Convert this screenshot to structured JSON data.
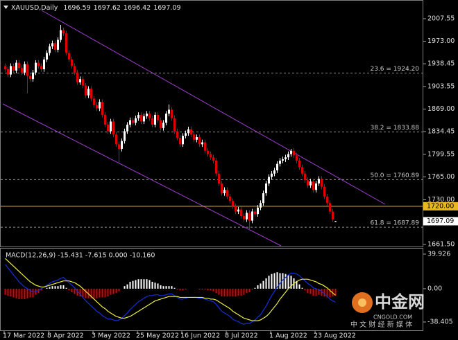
{
  "chart_data": [
    {
      "type": "candlestick",
      "title": "XAUUSD,Daily",
      "up_color": "#ffffff",
      "down_color": "#e00000",
      "categories": [
        "17 Mar 2022",
        null,
        null,
        null,
        null,
        null,
        null,
        null,
        null,
        null,
        null,
        null,
        null,
        null,
        null,
        null,
        "8 Apr 2022",
        null,
        null,
        null,
        null,
        null,
        null,
        null,
        null,
        null,
        null,
        null,
        null,
        null,
        null,
        null,
        "3 May 2022",
        null,
        null,
        null,
        null,
        null,
        null,
        null,
        null,
        null,
        null,
        null,
        null,
        null,
        null,
        null,
        "25 May 2022",
        null,
        null,
        null,
        null,
        null,
        null,
        null,
        null,
        null,
        null,
        null,
        null,
        null,
        null,
        null,
        "16 Jun 2022",
        null,
        null,
        null,
        null,
        null,
        null,
        null,
        null,
        null,
        null,
        null,
        null,
        null,
        null,
        null,
        "8 Jul 2022",
        null,
        null,
        null,
        null,
        null,
        null,
        null,
        null,
        null,
        null,
        null,
        null,
        null,
        null,
        null,
        "1 Aug 2022",
        null,
        null,
        null,
        null,
        null,
        null,
        null,
        null,
        null,
        null,
        null,
        null,
        null,
        null,
        null,
        "23 Aug 2022",
        null,
        null,
        null,
        null,
        null,
        null,
        null
      ],
      "open": [
        1935,
        1930,
        1922,
        1935,
        1928,
        1940,
        1932,
        1925,
        1938,
        1920,
        1915,
        1925,
        1940,
        1935,
        1930,
        1945,
        1955,
        1965,
        1970,
        1960,
        1975,
        1990,
        1985,
        1955,
        1945,
        1935,
        1925,
        1910,
        1915,
        1905,
        1890,
        1900,
        1885,
        1875,
        1870,
        1880,
        1860,
        1845,
        1835,
        1850,
        1830,
        1815,
        1808,
        1820,
        1835,
        1845,
        1852,
        1848,
        1855,
        1860,
        1850,
        1858,
        1862,
        1855,
        1845,
        1860,
        1852,
        1840,
        1848,
        1862,
        1868,
        1855,
        1835,
        1825,
        1815,
        1828,
        1832,
        1838,
        1830,
        1822,
        1826,
        1815,
        1818,
        1805,
        1800,
        1795,
        1790,
        1770,
        1755,
        1740,
        1745,
        1735,
        1728,
        1720,
        1712,
        1715,
        1705,
        1700,
        1710,
        1698,
        1712,
        1708,
        1718,
        1725,
        1740,
        1755,
        1765,
        1770,
        1775,
        1785,
        1790,
        1792,
        1795,
        1800,
        1805,
        1798,
        1790,
        1780,
        1770,
        1760,
        1752,
        1758,
        1745,
        1755,
        1762,
        1750,
        1735,
        1725,
        1712,
        1696.59
      ],
      "high": [
        1939,
        1934,
        1939,
        1939,
        1944,
        1944,
        1936,
        1942,
        1942,
        1924,
        1929,
        1944,
        1944,
        1939,
        1949,
        1959,
        1969,
        1974,
        1974,
        1979,
        1998,
        1994,
        1989,
        1959,
        1949,
        1939,
        1929,
        1919,
        1919,
        1909,
        1904,
        1904,
        1889,
        1879,
        1884,
        1884,
        1864,
        1849,
        1854,
        1854,
        1834,
        1819,
        1824,
        1839,
        1849,
        1856,
        1856,
        1859,
        1864,
        1864,
        1862,
        1866,
        1866,
        1859,
        1864,
        1864,
        1856,
        1852,
        1866,
        1876,
        1872,
        1859,
        1839,
        1829,
        1832,
        1836,
        1842,
        1842,
        1834,
        1830,
        1830,
        1822,
        1822,
        1809,
        1804,
        1799,
        1794,
        1774,
        1759,
        1749,
        1749,
        1739,
        1732,
        1724,
        1719,
        1719,
        1709,
        1714,
        1714,
        1716,
        1716,
        1722,
        1729,
        1744,
        1759,
        1769,
        1774,
        1779,
        1789,
        1794,
        1796,
        1799,
        1804,
        1808,
        1809,
        1802,
        1794,
        1784,
        1774,
        1764,
        1762,
        1762,
        1759,
        1766,
        1766,
        1754,
        1739,
        1729,
        1716,
        1697.62
      ],
      "low": [
        1926,
        1918,
        1918,
        1924,
        1924,
        1928,
        1921,
        1921,
        1893,
        1911,
        1911,
        1921,
        1931,
        1926,
        1926,
        1941,
        1951,
        1961,
        1956,
        1956,
        1971,
        1981,
        1951,
        1941,
        1931,
        1921,
        1906,
        1906,
        1901,
        1886,
        1886,
        1881,
        1871,
        1866,
        1866,
        1856,
        1841,
        1831,
        1831,
        1826,
        1811,
        1787,
        1804,
        1816,
        1831,
        1841,
        1844,
        1844,
        1851,
        1846,
        1846,
        1854,
        1851,
        1841,
        1841,
        1848,
        1836,
        1836,
        1844,
        1858,
        1851,
        1831,
        1821,
        1811,
        1811,
        1824,
        1828,
        1826,
        1818,
        1818,
        1811,
        1811,
        1801,
        1796,
        1791,
        1786,
        1766,
        1751,
        1736,
        1736,
        1731,
        1724,
        1716,
        1708,
        1708,
        1701,
        1696,
        1696,
        1683,
        1694,
        1704,
        1704,
        1714,
        1721,
        1736,
        1751,
        1761,
        1766,
        1771,
        1781,
        1786,
        1788,
        1791,
        1796,
        1794,
        1786,
        1776,
        1766,
        1756,
        1748,
        1748,
        1741,
        1741,
        1751,
        1746,
        1731,
        1721,
        1708,
        1696,
        1696.42
      ],
      "close": [
        1930,
        1922,
        1935,
        1928,
        1940,
        1932,
        1925,
        1938,
        1920,
        1915,
        1925,
        1940,
        1935,
        1930,
        1945,
        1955,
        1965,
        1970,
        1960,
        1975,
        1990,
        1985,
        1955,
        1945,
        1935,
        1925,
        1910,
        1915,
        1905,
        1890,
        1900,
        1885,
        1875,
        1870,
        1880,
        1860,
        1845,
        1835,
        1850,
        1830,
        1815,
        1808,
        1820,
        1835,
        1845,
        1852,
        1848,
        1855,
        1860,
        1850,
        1858,
        1862,
        1855,
        1845,
        1860,
        1852,
        1840,
        1848,
        1862,
        1868,
        1855,
        1835,
        1825,
        1815,
        1828,
        1832,
        1838,
        1830,
        1822,
        1826,
        1815,
        1818,
        1805,
        1800,
        1795,
        1790,
        1770,
        1755,
        1740,
        1745,
        1735,
        1728,
        1720,
        1712,
        1715,
        1705,
        1700,
        1710,
        1698,
        1712,
        1708,
        1718,
        1725,
        1740,
        1755,
        1765,
        1770,
        1775,
        1785,
        1790,
        1792,
        1795,
        1800,
        1805,
        1798,
        1790,
        1780,
        1770,
        1760,
        1752,
        1758,
        1745,
        1755,
        1762,
        1750,
        1735,
        1725,
        1712,
        1700,
        1697.09
      ],
      "ylim": [
        1658.3,
        2027.7
      ],
      "yticks": [
        2007.55,
        {
          "value": 1973,
          "label": "1973.00"
        },
        1938.45,
        1903.55,
        {
          "value": 1869,
          "label": "1869.00"
        },
        1834.45,
        1799.55,
        {
          "value": 1765,
          "label": "1765.00"
        },
        {
          "value": 1730,
          "label": "1730.00"
        },
        {
          "value": 1661.5,
          "label": "1661.50"
        }
      ],
      "levels": [
        {
          "value": 1924.2,
          "label": "23.6 = 1924.20"
        },
        {
          "value": 1833.88,
          "label": "38.2 = 1833.88"
        },
        {
          "value": 1760.89,
          "label": "50.0 = 1760.89"
        },
        {
          "value": 1687.89,
          "label": "61.8 = 1687.89"
        }
      ],
      "hline": {
        "value": 1720,
        "label": "1720.00",
        "color": "#e8b820"
      }
    },
    {
      "type": "macd",
      "title": "MACD(12,26,9) -15.431 -7.615 0.000 -10.160",
      "positive_color": "#ffffff",
      "negative_color": "#e00000",
      "histogram": [
        -7,
        -8,
        -9,
        -10,
        -11,
        -12,
        -12,
        -12,
        -11,
        -10,
        -10,
        -7,
        -5,
        -2,
        0,
        1,
        2,
        3,
        3,
        3,
        4,
        4,
        1,
        -2,
        -4,
        -6,
        -8,
        -9,
        -10,
        -11,
        -11,
        -11,
        -11,
        -11,
        -10,
        -10,
        -10,
        -9,
        -7,
        -6,
        -5,
        -3,
        0,
        3,
        5,
        8,
        9,
        10,
        11,
        11,
        11,
        11,
        10,
        8,
        7,
        6,
        4,
        3,
        3,
        3,
        3,
        1,
        -1,
        -2,
        -2,
        -1,
        0,
        0,
        0,
        0,
        -1,
        -1,
        -1,
        -2,
        -2,
        -3,
        -5,
        -7,
        -9,
        -9,
        -9,
        -9,
        -9,
        -9,
        -8,
        -8,
        -7,
        -5,
        -4,
        -1,
        1,
        4,
        6,
        9,
        12,
        15,
        17,
        18,
        19,
        18,
        18,
        17,
        16,
        15,
        12,
        9,
        5,
        1,
        -2,
        -5,
        -6,
        -8,
        -8,
        -7,
        -8,
        -9,
        -10,
        -10,
        -9,
        -8
      ],
      "series": [
        {
          "name": "MACD",
          "color": "#1030e0",
          "values": [
            28,
            24,
            20,
            16,
            12,
            8,
            5,
            2,
            0,
            -2,
            -4,
            -3,
            -2,
            0,
            2,
            4,
            6,
            8,
            9,
            10,
            12,
            13,
            10,
            7,
            4,
            1,
            -3,
            -6,
            -10,
            -14,
            -17,
            -20,
            -23,
            -26,
            -28,
            -31,
            -33,
            -35,
            -35,
            -36,
            -37,
            -36,
            -34,
            -31,
            -28,
            -24,
            -21,
            -18,
            -15,
            -13,
            -11,
            -9,
            -8,
            -8,
            -7,
            -7,
            -8,
            -8,
            -7,
            -6,
            -6,
            -8,
            -10,
            -12,
            -12,
            -11,
            -10,
            -10,
            -10,
            -10,
            -11,
            -11,
            -12,
            -13,
            -14,
            -15,
            -18,
            -22,
            -26,
            -28,
            -30,
            -32,
            -35,
            -37,
            -38,
            -40,
            -41,
            -40,
            -40,
            -38,
            -36,
            -33,
            -30,
            -25,
            -20,
            -14,
            -8,
            -3,
            2,
            6,
            10,
            13,
            16,
            18,
            18,
            17,
            15,
            12,
            9,
            6,
            4,
            1,
            0,
            -1,
            -3,
            -6,
            -9,
            -12,
            -14,
            -15.431
          ]
        },
        {
          "name": "Signal",
          "color": "#f0f040",
          "values": [
            35,
            32,
            29,
            26,
            23,
            20,
            17,
            14,
            11,
            8,
            6,
            4,
            3,
            2,
            2,
            3,
            4,
            5,
            6,
            7,
            8,
            9,
            9,
            9,
            8,
            7,
            5,
            3,
            0,
            -3,
            -6,
            -9,
            -12,
            -15,
            -18,
            -21,
            -23,
            -26,
            -28,
            -30,
            -32,
            -33,
            -34,
            -34,
            -33,
            -32,
            -30,
            -28,
            -26,
            -24,
            -22,
            -20,
            -18,
            -16,
            -14,
            -13,
            -12,
            -11,
            -10,
            -9,
            -9,
            -9,
            -9,
            -10,
            -10,
            -10,
            -10,
            -10,
            -10,
            -10,
            -10,
            -10,
            -11,
            -11,
            -12,
            -12,
            -13,
            -15,
            -17,
            -19,
            -21,
            -23,
            -26,
            -28,
            -30,
            -32,
            -34,
            -35,
            -36,
            -37,
            -37,
            -37,
            -36,
            -34,
            -32,
            -29,
            -25,
            -21,
            -17,
            -12,
            -8,
            -4,
            0,
            3,
            6,
            8,
            10,
            11,
            11,
            11,
            10,
            9,
            8,
            6,
            5,
            3,
            1,
            -2,
            -5,
            -7.615
          ]
        }
      ],
      "ylim": [
        -48.8,
        47.1
      ],
      "yticks": [
        39.926,
        {
          "value": 0,
          "label": "0.00"
        },
        -38.405
      ]
    }
  ],
  "watermark": {
    "brand": "中金网",
    "site": "CNGOLD.COM",
    "tagline": "中 文 财 经 新 媒 体"
  }
}
